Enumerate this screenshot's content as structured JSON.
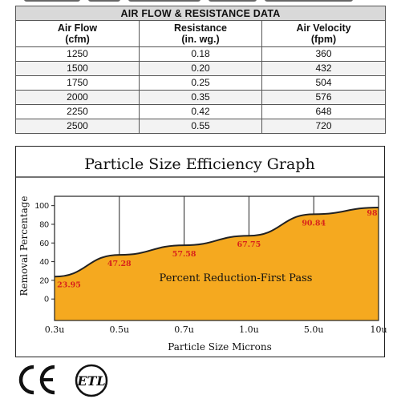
{
  "table": {
    "title": "AIR FLOW & RESISTANCE DATA",
    "headers": [
      {
        "line1": "Air Flow",
        "line2": "(cfm)"
      },
      {
        "line1": "Resistance",
        "line2": "(in. wg.)"
      },
      {
        "line1": "Air Velocity",
        "line2": "(fpm)"
      }
    ],
    "rows": [
      [
        "1250",
        "0.18",
        "360"
      ],
      [
        "1500",
        "0.20",
        "432"
      ],
      [
        "1750",
        "0.25",
        "504"
      ],
      [
        "2000",
        "0.35",
        "576"
      ],
      [
        "2250",
        "0.42",
        "648"
      ],
      [
        "2500",
        "0.55",
        "720"
      ]
    ]
  },
  "chart_data": {
    "type": "area",
    "title": "Particle Size Efficiency Graph",
    "xlabel": "Particle Size Microns",
    "ylabel": "Removal Percentage",
    "categories": [
      "0.3u",
      "0.5u",
      "0.7u",
      "1.0u",
      "5.0u",
      "10u"
    ],
    "series": [
      {
        "values": [
          23.95,
          47.28,
          57.58,
          67.75,
          90.84,
          98
        ]
      }
    ],
    "data_labels": [
      "23.95",
      "47.28",
      "57.58",
      "67.75",
      "90.84",
      "98"
    ],
    "yticks": [
      "100",
      "80",
      "60",
      "40",
      "20",
      "0"
    ],
    "ytick_values": [
      100,
      80,
      60,
      40,
      20,
      0
    ],
    "ylim": [
      -23,
      110
    ],
    "annotation": "Percent Reduction-First Pass",
    "grid": true,
    "fill_color": "#f5a91f",
    "line_color": "#222222",
    "label_color": "#d8231b"
  },
  "certifications": {
    "ce_mark": "CE",
    "etl_mark": "ETL"
  }
}
